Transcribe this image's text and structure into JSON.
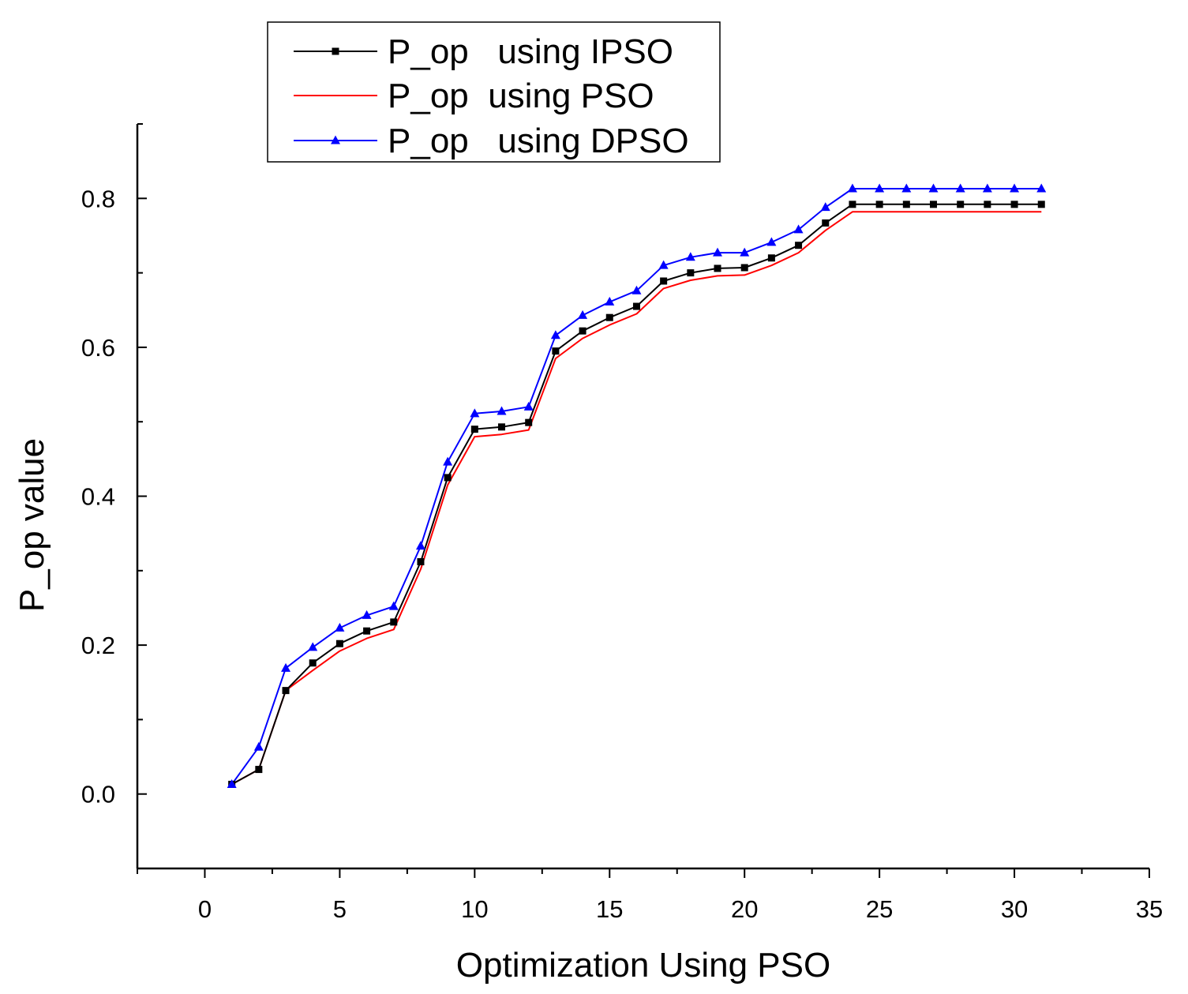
{
  "chart_data": {
    "type": "line",
    "title": "",
    "xlabel": "Optimization Using PSO",
    "ylabel": "P_op value",
    "xlim": [
      -2.5,
      35
    ],
    "ylim": [
      -0.1,
      0.9
    ],
    "xticks": [
      0,
      5,
      10,
      15,
      20,
      25,
      30,
      35
    ],
    "yticks": [
      0.0,
      0.2,
      0.4,
      0.6,
      0.8
    ],
    "xtick_labels": [
      "0",
      "5",
      "10",
      "15",
      "20",
      "25",
      "30",
      "35"
    ],
    "ytick_labels": [
      "0.0",
      "0.2",
      "0.4",
      "0.6",
      "0.8"
    ],
    "grid": false,
    "legend_position": "top-left",
    "x": [
      1,
      2,
      3,
      4,
      5,
      6,
      7,
      8,
      9,
      10,
      11,
      12,
      13,
      14,
      15,
      16,
      17,
      18,
      19,
      20,
      21,
      22,
      23,
      24,
      25,
      26,
      27,
      28,
      29,
      30,
      31
    ],
    "series": [
      {
        "name": "P_op   using IPSO",
        "color": "#000000",
        "marker": "square",
        "values": [
          0.013,
          0.033,
          0.139,
          0.176,
          0.202,
          0.219,
          0.231,
          0.312,
          0.425,
          0.49,
          0.493,
          0.499,
          0.595,
          0.622,
          0.64,
          0.655,
          0.689,
          0.7,
          0.706,
          0.707,
          0.72,
          0.737,
          0.767,
          0.792,
          0.792,
          0.792,
          0.792,
          0.792,
          0.792,
          0.792,
          0.792
        ]
      },
      {
        "name": "P_op  using PSO",
        "color": "#ff0000",
        "marker": "none",
        "values": [
          0.013,
          0.033,
          0.139,
          0.166,
          0.192,
          0.209,
          0.221,
          0.302,
          0.415,
          0.48,
          0.483,
          0.489,
          0.585,
          0.612,
          0.63,
          0.645,
          0.679,
          0.69,
          0.696,
          0.697,
          0.71,
          0.727,
          0.757,
          0.782,
          0.782,
          0.782,
          0.782,
          0.782,
          0.782,
          0.782,
          0.782
        ]
      },
      {
        "name": "P_op   using DPSO",
        "color": "#0000ff",
        "marker": "triangle",
        "values": [
          0.013,
          0.063,
          0.169,
          0.197,
          0.223,
          0.24,
          0.252,
          0.333,
          0.446,
          0.511,
          0.514,
          0.52,
          0.616,
          0.643,
          0.661,
          0.676,
          0.71,
          0.721,
          0.727,
          0.727,
          0.741,
          0.758,
          0.788,
          0.813,
          0.813,
          0.813,
          0.813,
          0.813,
          0.813,
          0.813,
          0.813
        ]
      }
    ]
  }
}
